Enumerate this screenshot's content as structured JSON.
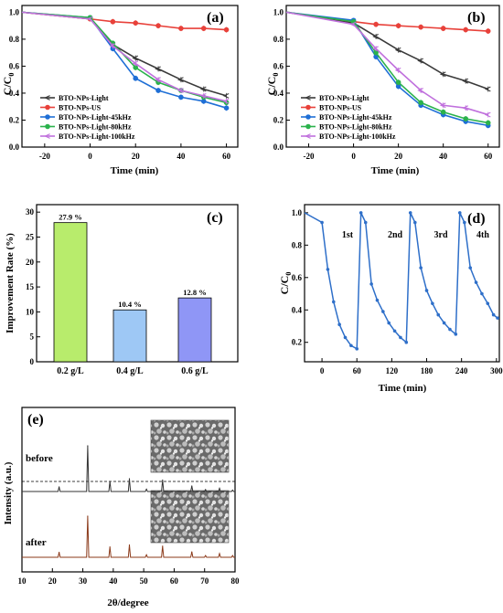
{
  "panels": {
    "a": {
      "label": "(a)",
      "ylabel": "C/C",
      "ylabel_sub": "0",
      "xlabel": "Time (min)",
      "xticks": [
        "-20",
        "0",
        "20",
        "40",
        "60"
      ],
      "yticks": [
        "0.0",
        "0.2",
        "0.4",
        "0.6",
        "0.8",
        "1.0"
      ]
    },
    "b": {
      "label": "(b)",
      "ylabel": "C/C",
      "ylabel_sub": "0",
      "xlabel": "Time (min)",
      "xticks": [
        "-20",
        "0",
        "20",
        "40",
        "60"
      ],
      "yticks": [
        "0.0",
        "0.2",
        "0.4",
        "0.6",
        "0.8",
        "1.0"
      ]
    },
    "c": {
      "label": "(c)",
      "ylabel": "Improvement Rate (%)",
      "yticks": [
        "0",
        "5",
        "10",
        "15",
        "20",
        "25",
        "30"
      ]
    },
    "d": {
      "label": "(d)",
      "ylabel": "C/C",
      "ylabel_sub": "0",
      "xlabel": "Time (min)",
      "xticks": [
        "0",
        "60",
        "120",
        "180",
        "240",
        "300"
      ],
      "yticks": [
        "0.2",
        "0.4",
        "0.6",
        "0.8",
        "1.0"
      ],
      "cycle_labels": [
        "1st",
        "2nd",
        "3rd",
        "4th"
      ]
    },
    "e": {
      "label": "(e)",
      "ylabel": "Intensity (a.u.)",
      "xlabel": "2θ/degree",
      "xticks": [
        "10",
        "20",
        "30",
        "40",
        "50",
        "60",
        "70",
        "80"
      ],
      "trace_labels": [
        "before",
        "after"
      ]
    }
  },
  "colors": {
    "light": "#3a3a3a",
    "us": "#e8413a",
    "k45": "#1f6fd6",
    "k80": "#2bb24c",
    "k100": "#c070dd",
    "bar1": "#b8ec6c",
    "bar2": "#9ec8f5",
    "bar3": "#8f96f6",
    "cycle": "#2e6fc9",
    "xrd_before": "#333333",
    "xrd_after": "#8b3a1a"
  },
  "chart_data": [
    {
      "panel": "a",
      "type": "line",
      "xlabel": "Time (min)",
      "ylabel": "C/C0",
      "xlim": [
        -30,
        65
      ],
      "ylim": [
        0,
        1.05
      ],
      "x": [
        -30,
        0,
        10,
        20,
        30,
        40,
        50,
        60
      ],
      "series": [
        {
          "name": "BTO-NPs-Light",
          "values": [
            1.0,
            0.95,
            0.76,
            0.66,
            0.58,
            0.5,
            0.43,
            0.38
          ]
        },
        {
          "name": "BTO-NPs-US",
          "values": [
            1.0,
            0.95,
            0.93,
            0.92,
            0.9,
            0.88,
            0.88,
            0.87
          ]
        },
        {
          "name": "BTO-NPs-Light-45kHz",
          "values": [
            1.0,
            0.96,
            0.73,
            0.51,
            0.42,
            0.37,
            0.34,
            0.29
          ]
        },
        {
          "name": "BTO-NPs-Light-80kHz",
          "values": [
            1.0,
            0.96,
            0.77,
            0.59,
            0.48,
            0.42,
            0.37,
            0.33
          ]
        },
        {
          "name": "BTO-NPs-Light-100kHz",
          "values": [
            1.0,
            0.95,
            0.75,
            0.62,
            0.5,
            0.42,
            0.38,
            0.34
          ]
        }
      ]
    },
    {
      "panel": "b",
      "type": "line",
      "xlabel": "Time (min)",
      "ylabel": "C/C0",
      "xlim": [
        -30,
        65
      ],
      "ylim": [
        0,
        1.05
      ],
      "x": [
        -30,
        0,
        10,
        20,
        30,
        40,
        50,
        60
      ],
      "series": [
        {
          "name": "BTO-NPs-Light",
          "values": [
            1.0,
            0.92,
            0.82,
            0.72,
            0.64,
            0.54,
            0.49,
            0.43
          ]
        },
        {
          "name": "BTO-NPs-US",
          "values": [
            1.0,
            0.93,
            0.91,
            0.9,
            0.89,
            0.88,
            0.87,
            0.86
          ]
        },
        {
          "name": "BTO-NPs-Light-45kHz",
          "values": [
            1.0,
            0.94,
            0.67,
            0.45,
            0.31,
            0.24,
            0.19,
            0.16
          ]
        },
        {
          "name": "BTO-NPs-Light-80kHz",
          "values": [
            1.0,
            0.93,
            0.7,
            0.48,
            0.33,
            0.26,
            0.21,
            0.18
          ]
        },
        {
          "name": "BTO-NPs-Light-100kHz",
          "values": [
            1.0,
            0.91,
            0.73,
            0.57,
            0.42,
            0.31,
            0.29,
            0.24
          ]
        }
      ]
    },
    {
      "panel": "c",
      "type": "bar",
      "ylabel": "Improvement Rate (%)",
      "ylim": [
        0,
        30
      ],
      "categories": [
        "0.2 g/L",
        "0.4 g/L",
        "0.6 g/L"
      ],
      "values": [
        27.9,
        10.4,
        12.8
      ],
      "data_labels": [
        "27.9 %",
        "10.4 %",
        "12.8 %"
      ]
    },
    {
      "panel": "d",
      "type": "line",
      "xlabel": "Time (min)",
      "ylabel": "C/C0",
      "xlim": [
        -30,
        305
      ],
      "ylim": [
        0.08,
        1.05
      ],
      "x": [
        -30,
        0,
        10,
        20,
        30,
        40,
        50,
        60,
        67,
        75,
        85,
        95,
        105,
        115,
        125,
        135,
        145,
        152,
        160,
        170,
        180,
        190,
        200,
        210,
        220,
        230,
        237,
        245,
        255,
        265,
        275,
        285,
        295,
        302
      ],
      "series": [
        {
          "name": "",
          "values": [
            1.0,
            0.94,
            0.65,
            0.45,
            0.31,
            0.23,
            0.18,
            0.16,
            1.0,
            0.94,
            0.56,
            0.46,
            0.39,
            0.32,
            0.27,
            0.23,
            0.2,
            1.0,
            0.94,
            0.66,
            0.52,
            0.44,
            0.37,
            0.32,
            0.28,
            0.25,
            1.0,
            0.94,
            0.66,
            0.57,
            0.5,
            0.44,
            0.37,
            0.35
          ]
        }
      ]
    },
    {
      "panel": "e",
      "type": "line",
      "xlabel": "2θ/degree",
      "ylabel": "Intensity (a.u.)",
      "xlim": [
        10,
        80
      ],
      "peaks_2theta": [
        22.2,
        31.6,
        38.9,
        45.3,
        50.9,
        56.2,
        65.8,
        70.3,
        74.9,
        79.2
      ],
      "series": [
        {
          "name": "before",
          "relative_intensity": [
            0.1,
            1.0,
            0.22,
            0.28,
            0.05,
            0.25,
            0.12,
            0.04,
            0.07,
            0.03
          ]
        },
        {
          "name": "after",
          "relative_intensity": [
            0.12,
            1.0,
            0.25,
            0.3,
            0.06,
            0.27,
            0.13,
            0.04,
            0.09,
            0.04
          ]
        }
      ]
    }
  ]
}
